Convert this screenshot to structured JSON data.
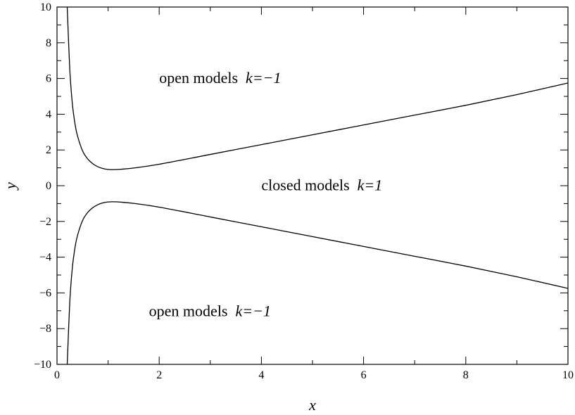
{
  "chart_data": {
    "type": "line",
    "xlabel": "x",
    "ylabel": "y",
    "xlim": [
      0,
      10
    ],
    "ylim": [
      -10,
      10
    ],
    "x_ticks": [
      0,
      2,
      4,
      6,
      8,
      10
    ],
    "x_tick_labels": [
      "0",
      "2",
      "4",
      "6",
      "8",
      "10"
    ],
    "y_ticks": [
      -10,
      -8,
      -6,
      -4,
      -2,
      0,
      2,
      4,
      6,
      8,
      10
    ],
    "y_tick_labels": [
      "−10",
      "−8",
      "−6",
      "−4",
      "−2",
      "0",
      "2",
      "4",
      "6",
      "8",
      "10"
    ],
    "grid": false,
    "series": [
      {
        "x": [
          0.2,
          0.25,
          0.3,
          0.35,
          0.4,
          0.5,
          0.6,
          0.7,
          0.8,
          0.9,
          1.0,
          1.1,
          1.25,
          1.5,
          2.0,
          3.0,
          4.0,
          5.0,
          6.0,
          7.0,
          8.0,
          9.0,
          10.0
        ],
        "y": [
          10.0,
          6.5,
          4.6,
          3.5,
          2.8,
          1.95,
          1.5,
          1.23,
          1.06,
          0.96,
          0.91,
          0.9,
          0.92,
          0.99,
          1.2,
          1.75,
          2.3,
          2.85,
          3.4,
          3.95,
          4.5,
          5.1,
          5.75
        ]
      },
      {
        "x": [
          0.2,
          0.25,
          0.3,
          0.35,
          0.4,
          0.5,
          0.6,
          0.7,
          0.8,
          0.9,
          1.0,
          1.1,
          1.25,
          1.5,
          2.0,
          3.0,
          4.0,
          5.0,
          6.0,
          7.0,
          8.0,
          9.0,
          10.0
        ],
        "y": [
          -10.0,
          -6.5,
          -4.6,
          -3.5,
          -2.8,
          -1.95,
          -1.5,
          -1.23,
          -1.06,
          -0.96,
          -0.91,
          -0.9,
          -0.92,
          -0.99,
          -1.2,
          -1.75,
          -2.3,
          -2.85,
          -3.4,
          -3.95,
          -4.5,
          -5.1,
          -5.75
        ]
      }
    ],
    "annotations": [
      {
        "text": "open models",
        "italic_text": "k=−1",
        "x": 2.0,
        "y": 5.75
      },
      {
        "text": "closed models",
        "italic_text": "k=1",
        "x": 4.0,
        "y": -0.25
      },
      {
        "text": "open models",
        "italic_text": "k=−1",
        "x": 1.8,
        "y": -7.3
      }
    ]
  }
}
